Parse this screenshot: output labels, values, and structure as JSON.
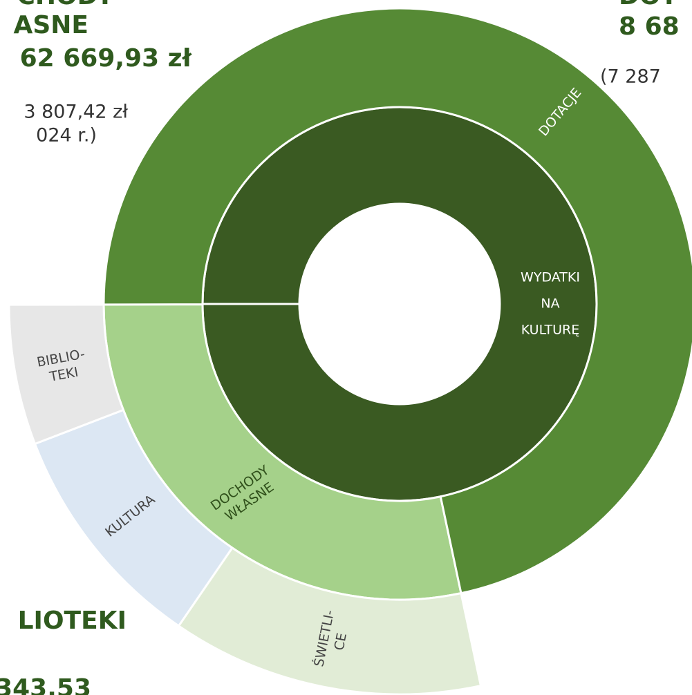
{
  "chart_data": {
    "type": "sunburst",
    "center_label": [
      "WYDATKI",
      "NA",
      "KULTURĘ"
    ],
    "center_color": "#3a5a22",
    "categories": [
      [
        "DOCHODY",
        "WŁASNE"
      ],
      [
        "DOTACJE"
      ]
    ],
    "values": [
      28.3,
      71.7
    ],
    "colors": [
      "#a5d18a",
      "#568a35"
    ],
    "children": {
      "parent": 0,
      "categories": [
        [
          "ŚWIETLI-",
          "CE"
        ],
        [
          "KULTURA"
        ],
        [
          "BIBLIO-",
          "TEKI"
        ]
      ],
      "values": [
        12.9,
        9.6,
        5.8
      ],
      "colors": [
        "#e1ecd6",
        "#dce7f3",
        "#e7e7e7"
      ]
    },
    "annotations": [
      "CHODY",
      "ASNE",
      "62 669,93 zł",
      "3 807,42 zł",
      "024 r.)",
      "DOT",
      "8 68",
      "(7 287",
      "LIOTEKI",
      "343,53"
    ]
  }
}
